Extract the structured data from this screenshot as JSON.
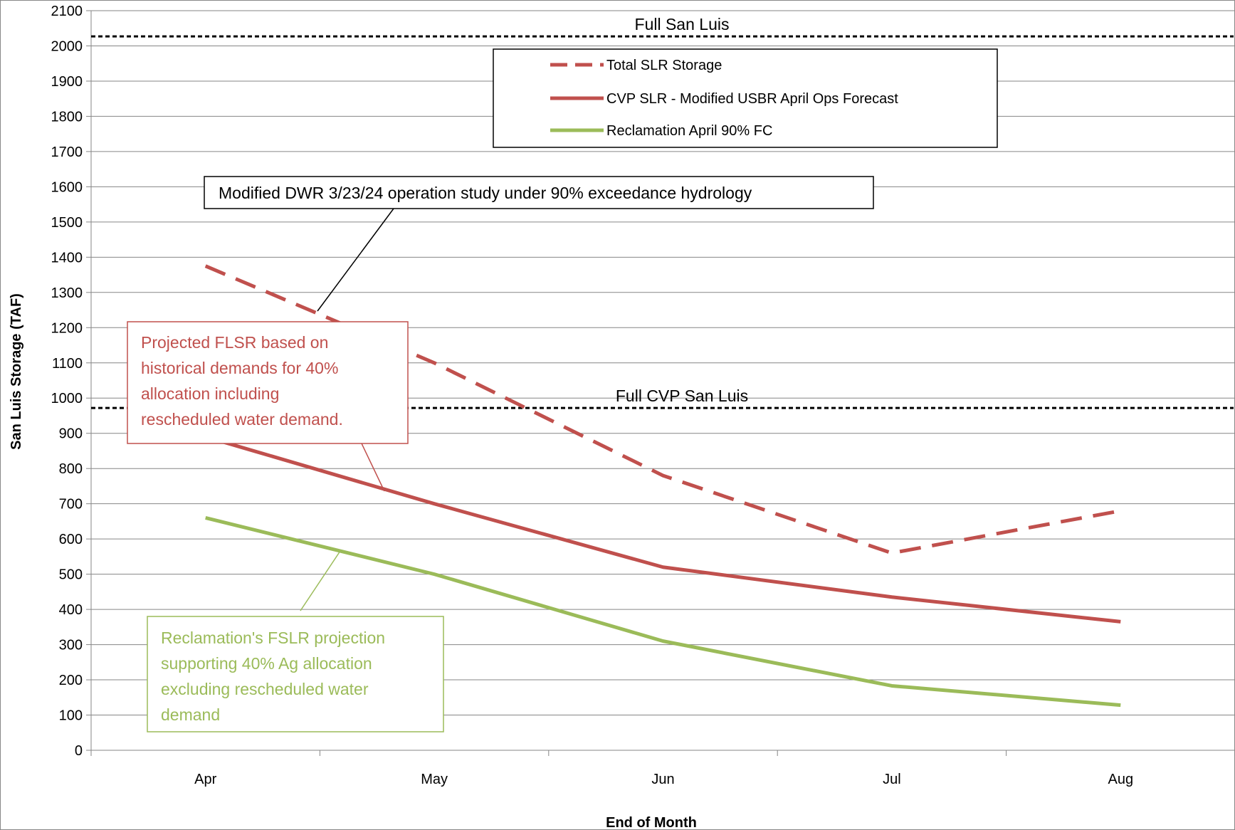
{
  "chart_data": {
    "type": "line",
    "xlabel": "End of Month",
    "ylabel": "San Luis Storage (TAF)",
    "ylim": [
      0,
      2100
    ],
    "yticks": [
      0,
      100,
      200,
      300,
      400,
      500,
      600,
      700,
      800,
      900,
      1000,
      1100,
      1200,
      1300,
      1400,
      1500,
      1600,
      1700,
      1800,
      1900,
      2000,
      2100
    ],
    "categories": [
      "Apr",
      "May",
      "Jun",
      "Jul",
      "Aug"
    ],
    "grid": true,
    "legend_position": "top-center",
    "series": [
      {
        "name": "Total SLR Storage",
        "values": [
          1375,
          1100,
          780,
          560,
          680
        ],
        "color": "#c0504d",
        "style": "dashed"
      },
      {
        "name": "CVP SLR - Modified USBR April Ops Forecast",
        "values": [
          890,
          700,
          520,
          435,
          365
        ],
        "color": "#c0504d",
        "style": "solid"
      },
      {
        "name": "Reclamation April 90% FC",
        "values": [
          660,
          500,
          310,
          183,
          128
        ],
        "color": "#9bbb59",
        "style": "solid"
      }
    ],
    "reference_lines": [
      {
        "label": "Full  San Luis",
        "value": 2027
      },
      {
        "label": "Full CVP San Luis",
        "value": 972
      }
    ],
    "annotations": [
      {
        "text": "Modified DWR 3/23/24 operation study under 90% exceedance hydrology",
        "color": "#000000"
      },
      {
        "lines": [
          "Projected FLSR based on",
          "historical demands for 40%",
          "allocation including",
          "rescheduled water demand."
        ],
        "color": "#c0504d"
      },
      {
        "lines": [
          "Reclamation's FSLR projection",
          "supporting 40% Ag allocation",
          "excluding rescheduled water",
          "demand"
        ],
        "color": "#9bbb59"
      }
    ]
  }
}
